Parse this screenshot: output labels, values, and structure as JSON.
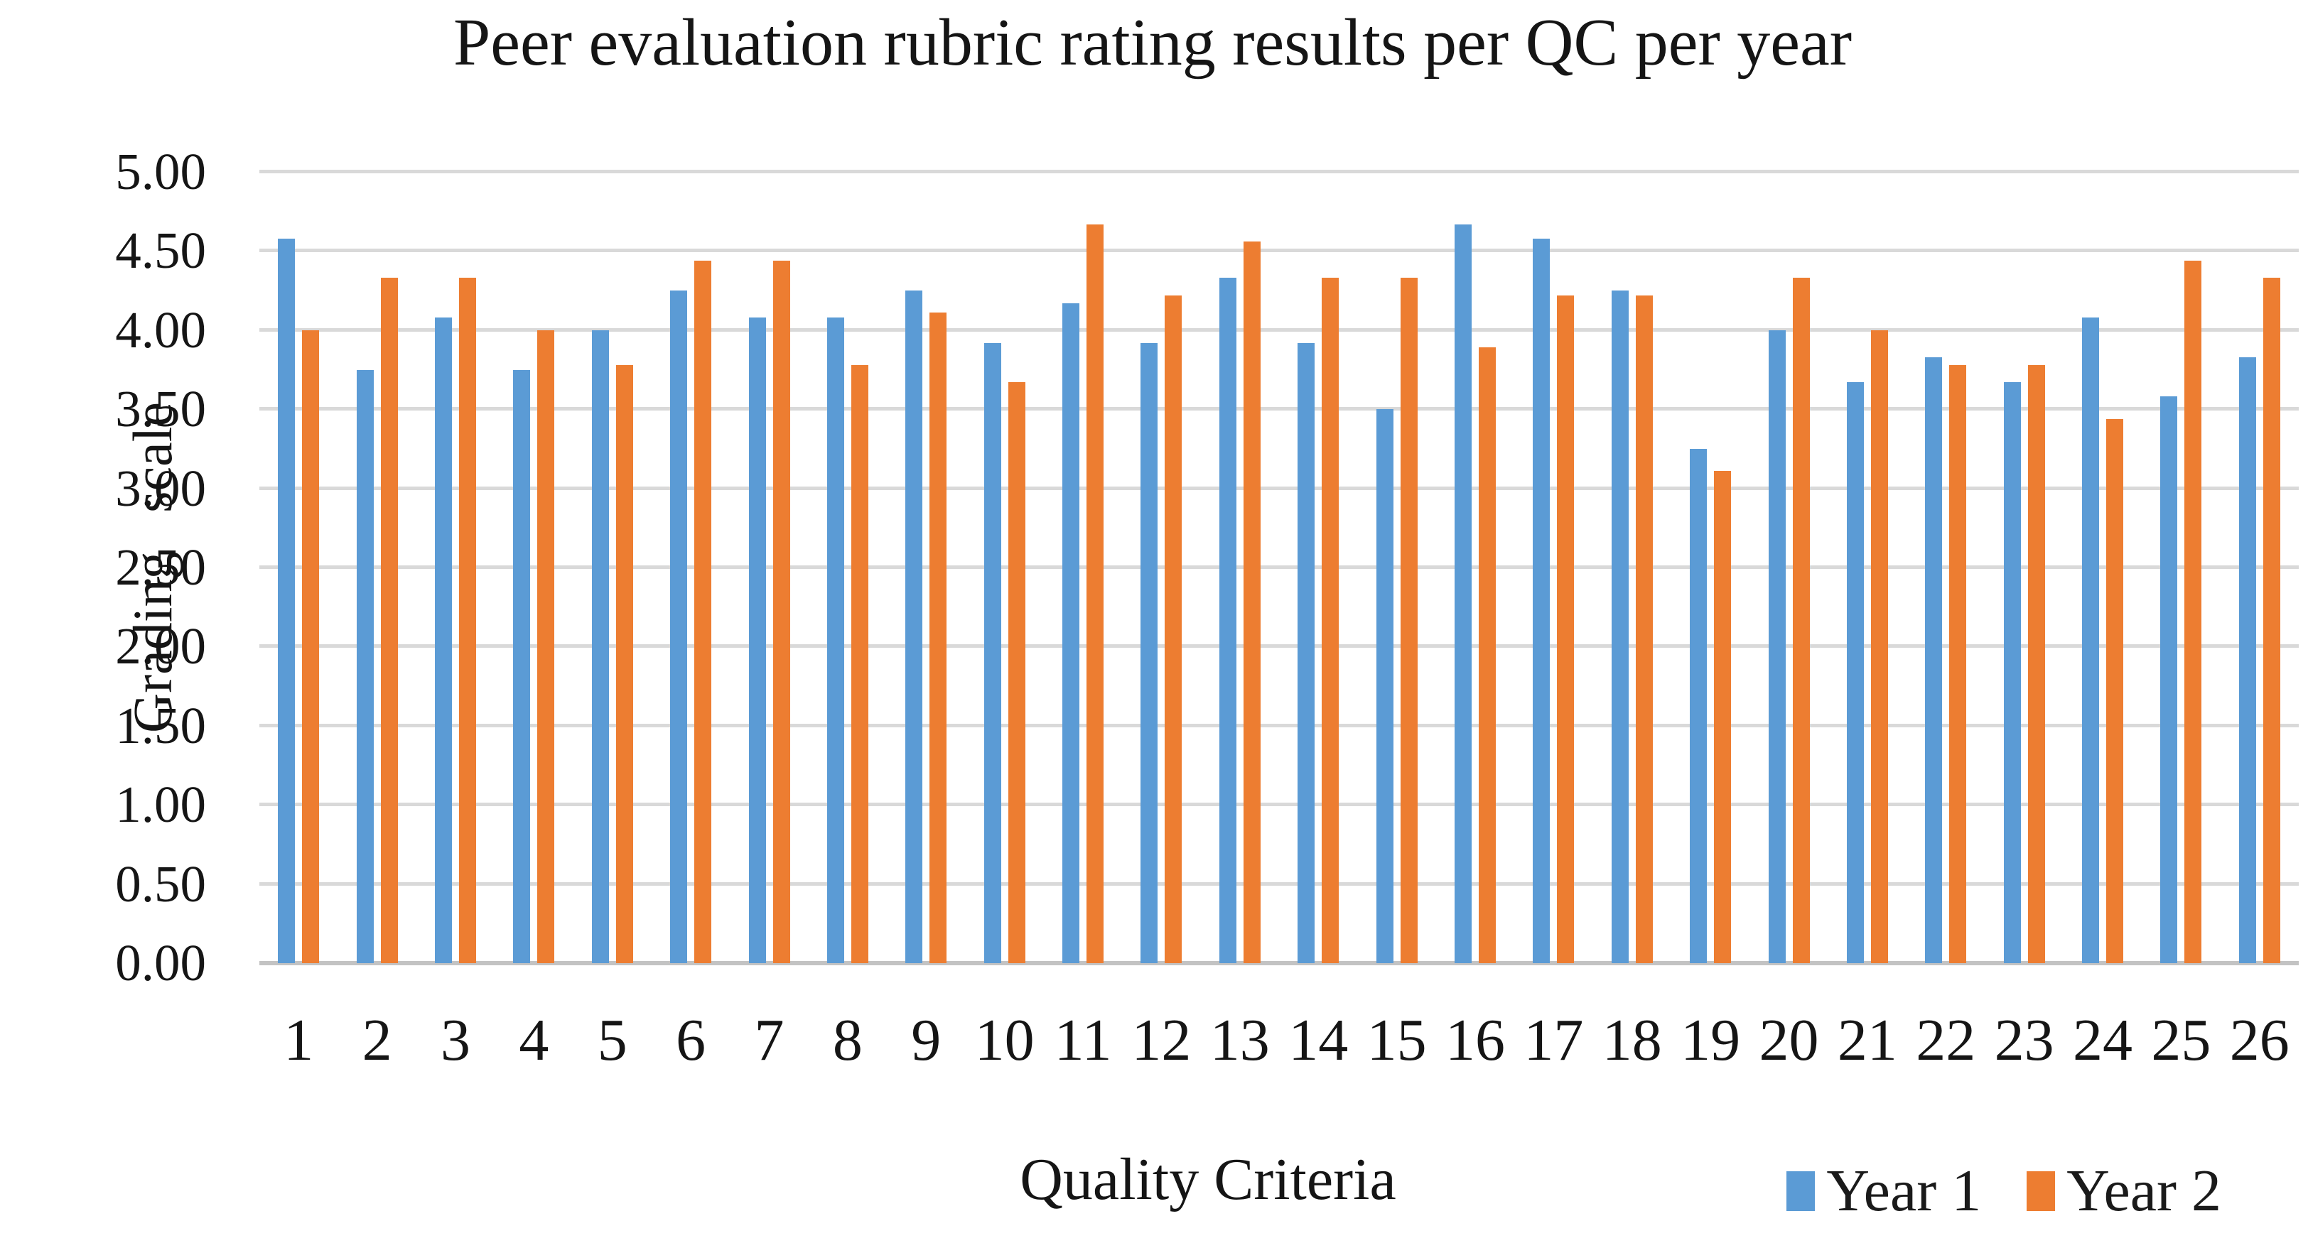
{
  "chart_data": {
    "type": "bar",
    "title": "Peer evaluation rubric rating results per QC per year",
    "xlabel": "Quality Criteria",
    "ylabel": "Grading scale",
    "categories": [
      "1",
      "2",
      "3",
      "4",
      "5",
      "6",
      "7",
      "8",
      "9",
      "10",
      "11",
      "12",
      "13",
      "14",
      "15",
      "16",
      "17",
      "18",
      "19",
      "20",
      "21",
      "22",
      "23",
      "24",
      "25",
      "26"
    ],
    "series": [
      {
        "name": "Year 1",
        "color": "#5B9BD5",
        "values": [
          4.58,
          3.75,
          4.08,
          3.75,
          4.0,
          4.25,
          4.08,
          4.08,
          4.25,
          3.92,
          4.17,
          3.92,
          4.33,
          3.92,
          3.5,
          4.67,
          4.58,
          4.25,
          3.25,
          4.0,
          3.67,
          3.83,
          3.67,
          4.08,
          3.58,
          3.83
        ]
      },
      {
        "name": "Year 2",
        "color": "#ED7D31",
        "values": [
          4.0,
          4.33,
          4.33,
          4.0,
          3.78,
          4.44,
          4.44,
          3.78,
          4.11,
          3.67,
          4.67,
          4.22,
          4.56,
          4.33,
          4.33,
          3.89,
          4.22,
          4.22,
          3.11,
          4.33,
          4.0,
          3.78,
          3.78,
          3.44,
          4.44,
          4.33
        ]
      }
    ],
    "ylim": [
      0,
      5
    ],
    "ytick_step": 0.5,
    "ytick_labels_top_down": [
      "5.00",
      "4.50",
      "4.00",
      "3.50",
      "3.00",
      "2.50",
      "2.00",
      "1.50",
      "1.00",
      "0.50",
      "0.00"
    ],
    "grid": true,
    "gridline_color": "#D9D9D9",
    "legend_position": "bottom-right"
  },
  "legend": {
    "items": [
      {
        "label": "Year 1",
        "color": "#5B9BD5"
      },
      {
        "label": "Year 2",
        "color": "#ED7D31"
      }
    ]
  }
}
